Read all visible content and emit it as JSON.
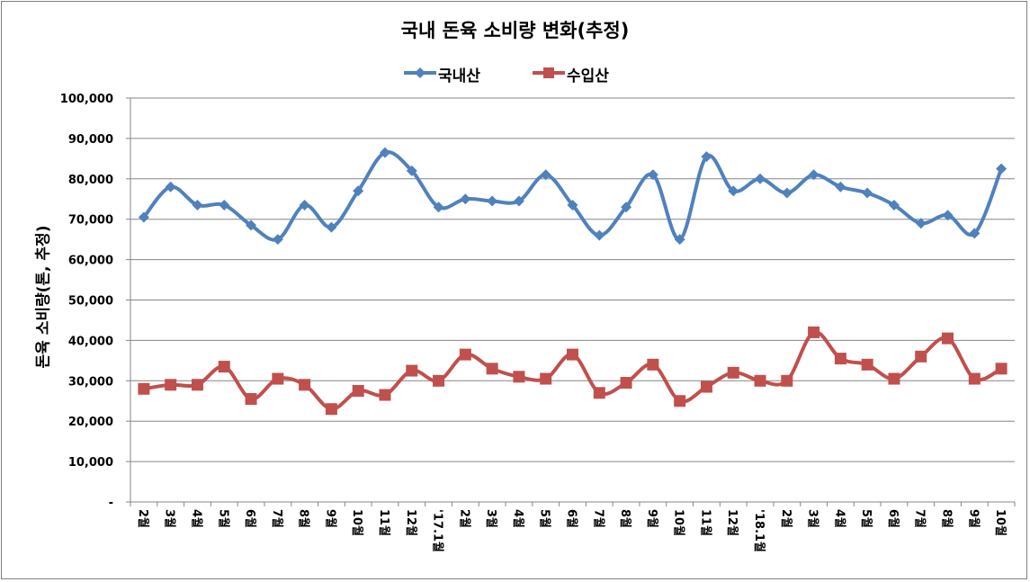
{
  "chart_data": {
    "type": "line",
    "title": "국내 돈육 소비량 변화(추정)",
    "ylabel": "돈육 소비량(톤, 추정)",
    "xlabel": "",
    "ylim": [
      0,
      100000
    ],
    "yticks": [
      "-",
      "10,000",
      "20,000",
      "30,000",
      "40,000",
      "50,000",
      "60,000",
      "70,000",
      "80,000",
      "90,000",
      "100,000"
    ],
    "grid": "horizontal",
    "legend_position": "top-center",
    "categories": [
      "2월",
      "3월",
      "4월",
      "5월",
      "6월",
      "7월",
      "8월",
      "9월",
      "10월",
      "11월",
      "12월",
      "'17.1월",
      "2월",
      "3월",
      "4월",
      "5월",
      "6월",
      "7월",
      "8월",
      "9월",
      "10월",
      "11월",
      "12월",
      "'18.1월",
      "2월",
      "3월",
      "4월",
      "5월",
      "6월",
      "7월",
      "8월",
      "9월",
      "10월"
    ],
    "series": [
      {
        "name": "국내산",
        "color": "#4f81bd",
        "marker": "diamond",
        "values": [
          70500,
          78000,
          73500,
          73500,
          68500,
          65000,
          73500,
          68000,
          77000,
          86500,
          82000,
          73000,
          75000,
          74500,
          74500,
          81000,
          73500,
          66000,
          73000,
          81000,
          65000,
          85500,
          77000,
          80000,
          76500,
          81000,
          78000,
          76500,
          73500,
          69000,
          71000,
          66500,
          82500
        ]
      },
      {
        "name": "수입산",
        "color": "#c0504d",
        "marker": "square",
        "values": [
          28000,
          29000,
          29000,
          33500,
          25500,
          30500,
          29000,
          23000,
          27500,
          26500,
          32500,
          30000,
          36500,
          33000,
          31000,
          30500,
          36500,
          27000,
          29500,
          34000,
          25000,
          28500,
          32000,
          30000,
          30000,
          42000,
          35500,
          34000,
          30500,
          36000,
          40500,
          30500,
          33000
        ]
      }
    ]
  }
}
